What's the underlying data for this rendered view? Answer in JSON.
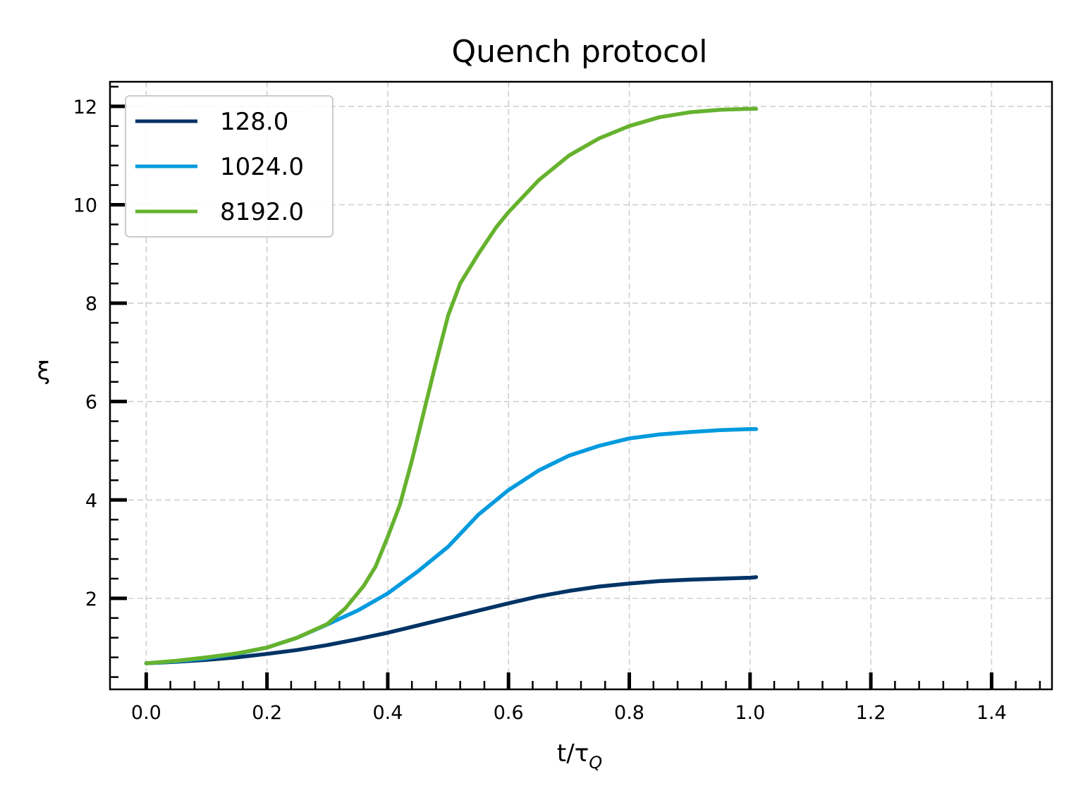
{
  "chart_data": {
    "type": "line",
    "title": "Quench protocol",
    "xlabel": "t/τ",
    "xlabel_sub": "Q",
    "ylabel": "ξ",
    "xlim": [
      -0.06,
      1.5
    ],
    "ylim": [
      0.15,
      12.5
    ],
    "xticks": [
      {
        "value": 0.0,
        "label": "0.0"
      },
      {
        "value": 0.2,
        "label": "0.2"
      },
      {
        "value": 0.4,
        "label": "0.4"
      },
      {
        "value": 0.6,
        "label": "0.6"
      },
      {
        "value": 0.8,
        "label": "0.8"
      },
      {
        "value": 1.0,
        "label": "1.0"
      },
      {
        "value": 1.2,
        "label": "1.2"
      },
      {
        "value": 1.4,
        "label": "1.4"
      }
    ],
    "yticks": [
      {
        "value": 2,
        "label": "2"
      },
      {
        "value": 4,
        "label": "4"
      },
      {
        "value": 6,
        "label": "6"
      },
      {
        "value": 8,
        "label": "8"
      },
      {
        "value": 10,
        "label": "10"
      },
      {
        "value": 12,
        "label": "12"
      }
    ],
    "grid": true,
    "legend_position": "top-left",
    "series": [
      {
        "name": "128.0",
        "color": "#003366",
        "x": [
          0.0,
          0.05,
          0.1,
          0.15,
          0.2,
          0.25,
          0.3,
          0.35,
          0.4,
          0.45,
          0.5,
          0.55,
          0.6,
          0.65,
          0.7,
          0.75,
          0.8,
          0.85,
          0.9,
          0.95,
          1.0,
          1.01
        ],
        "y": [
          0.68,
          0.71,
          0.75,
          0.8,
          0.87,
          0.95,
          1.05,
          1.17,
          1.3,
          1.45,
          1.6,
          1.75,
          1.9,
          2.04,
          2.15,
          2.24,
          2.3,
          2.35,
          2.38,
          2.4,
          2.42,
          2.43
        ]
      },
      {
        "name": "1024.0",
        "color": "#009ade",
        "x": [
          0.0,
          0.05,
          0.1,
          0.15,
          0.2,
          0.25,
          0.3,
          0.35,
          0.4,
          0.45,
          0.5,
          0.55,
          0.6,
          0.65,
          0.7,
          0.75,
          0.8,
          0.85,
          0.9,
          0.95,
          1.0,
          1.01
        ],
        "y": [
          0.68,
          0.72,
          0.78,
          0.87,
          1.0,
          1.2,
          1.47,
          1.75,
          2.1,
          2.55,
          3.05,
          3.7,
          4.2,
          4.6,
          4.9,
          5.1,
          5.25,
          5.33,
          5.38,
          5.42,
          5.44,
          5.44
        ]
      },
      {
        "name": "8192.0",
        "color": "#66b22e",
        "x": [
          0.0,
          0.05,
          0.1,
          0.15,
          0.2,
          0.25,
          0.3,
          0.33,
          0.36,
          0.38,
          0.4,
          0.42,
          0.44,
          0.46,
          0.48,
          0.5,
          0.52,
          0.55,
          0.58,
          0.6,
          0.65,
          0.7,
          0.75,
          0.8,
          0.85,
          0.9,
          0.95,
          1.0,
          1.01
        ],
        "y": [
          0.68,
          0.73,
          0.8,
          0.88,
          1.0,
          1.2,
          1.48,
          1.8,
          2.25,
          2.65,
          3.25,
          3.9,
          4.8,
          5.8,
          6.8,
          7.75,
          8.4,
          9.0,
          9.55,
          9.85,
          10.5,
          11.0,
          11.35,
          11.6,
          11.78,
          11.88,
          11.93,
          11.95,
          11.95
        ]
      }
    ]
  }
}
